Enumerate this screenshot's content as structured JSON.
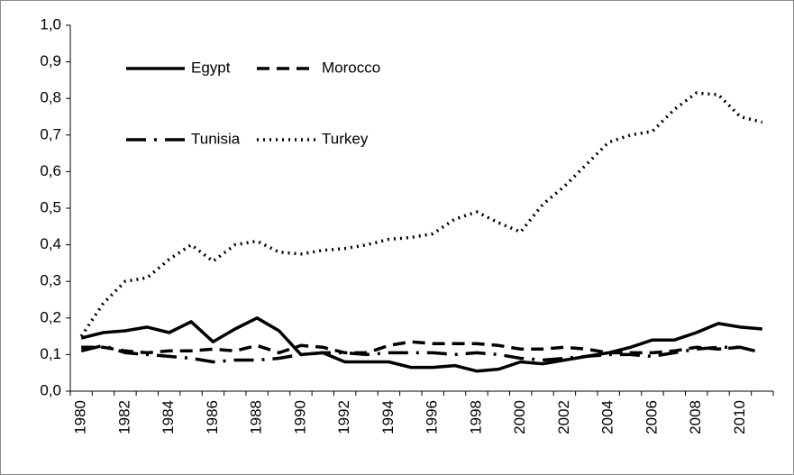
{
  "chart_data": {
    "type": "line",
    "categories": [
      "1980",
      null,
      "1982",
      null,
      "1984",
      null,
      "1986",
      null,
      "1988",
      null,
      "1990",
      null,
      "1992",
      null,
      "1994",
      null,
      "1996",
      null,
      "1998",
      null,
      "2000",
      null,
      "2002",
      null,
      "2004",
      null,
      "2006",
      null,
      "2008",
      null,
      "2010",
      null
    ],
    "series": [
      {
        "name": "Egypt",
        "color": "#000000",
        "dash": "solid",
        "values": [
          0.145,
          0.16,
          0.165,
          0.175,
          0.16,
          0.19,
          0.135,
          0.17,
          0.2,
          0.165,
          0.1,
          0.105,
          0.08,
          0.08,
          0.08,
          0.065,
          0.065,
          0.07,
          0.055,
          0.06,
          0.08,
          0.075,
          0.085,
          0.095,
          0.105,
          0.12,
          0.14,
          0.14,
          0.16,
          0.185,
          0.175,
          0.17
        ]
      },
      {
        "name": "Morocco",
        "color": "#000000",
        "dash": "dashed",
        "values": [
          0.12,
          0.12,
          0.11,
          0.105,
          0.11,
          0.11,
          0.115,
          0.11,
          0.125,
          0.105,
          0.125,
          0.12,
          0.105,
          0.105,
          0.125,
          0.135,
          0.13,
          0.13,
          0.13,
          0.125,
          0.115,
          0.115,
          0.12,
          0.115,
          0.105,
          0.105,
          0.105,
          0.11,
          0.12,
          0.115,
          0.12,
          null
        ]
      },
      {
        "name": "Tunisia",
        "color": "#000000",
        "dash": "dashdot",
        "values": [
          0.11,
          0.125,
          0.105,
          0.1,
          0.095,
          0.09,
          0.08,
          0.085,
          0.085,
          0.09,
          0.1,
          0.105,
          0.105,
          0.1,
          0.105,
          0.105,
          0.105,
          0.1,
          0.105,
          0.1,
          0.09,
          0.085,
          0.09,
          0.095,
          0.1,
          0.1,
          0.095,
          0.105,
          0.115,
          0.12,
          0.12,
          0.105
        ]
      },
      {
        "name": "Turkey",
        "color": "#000000",
        "dash": "dotted",
        "values": [
          0.15,
          0.24,
          0.3,
          0.31,
          0.36,
          0.4,
          0.355,
          0.4,
          0.41,
          0.38,
          0.375,
          0.385,
          0.39,
          0.4,
          0.415,
          0.42,
          0.43,
          0.47,
          0.49,
          0.46,
          0.435,
          0.51,
          0.56,
          0.62,
          0.68,
          0.7,
          0.71,
          0.77,
          0.815,
          0.81,
          0.75,
          0.735
        ]
      }
    ],
    "ylim": [
      0,
      1
    ],
    "yticks": [
      {
        "value": 0,
        "label": "0,0"
      },
      {
        "value": 0.1,
        "label": "0,1"
      },
      {
        "value": 0.2,
        "label": "0,2"
      },
      {
        "value": 0.3,
        "label": "0,3"
      },
      {
        "value": 0.4,
        "label": "0,4"
      },
      {
        "value": 0.5,
        "label": "0,5"
      },
      {
        "value": 0.6,
        "label": "0,6"
      },
      {
        "value": 0.7,
        "label": "0,7"
      },
      {
        "value": 0.8,
        "label": "0,8"
      },
      {
        "value": 0.9,
        "label": "0,9"
      },
      {
        "value": 1,
        "label": "1,0"
      }
    ],
    "grid": false
  }
}
